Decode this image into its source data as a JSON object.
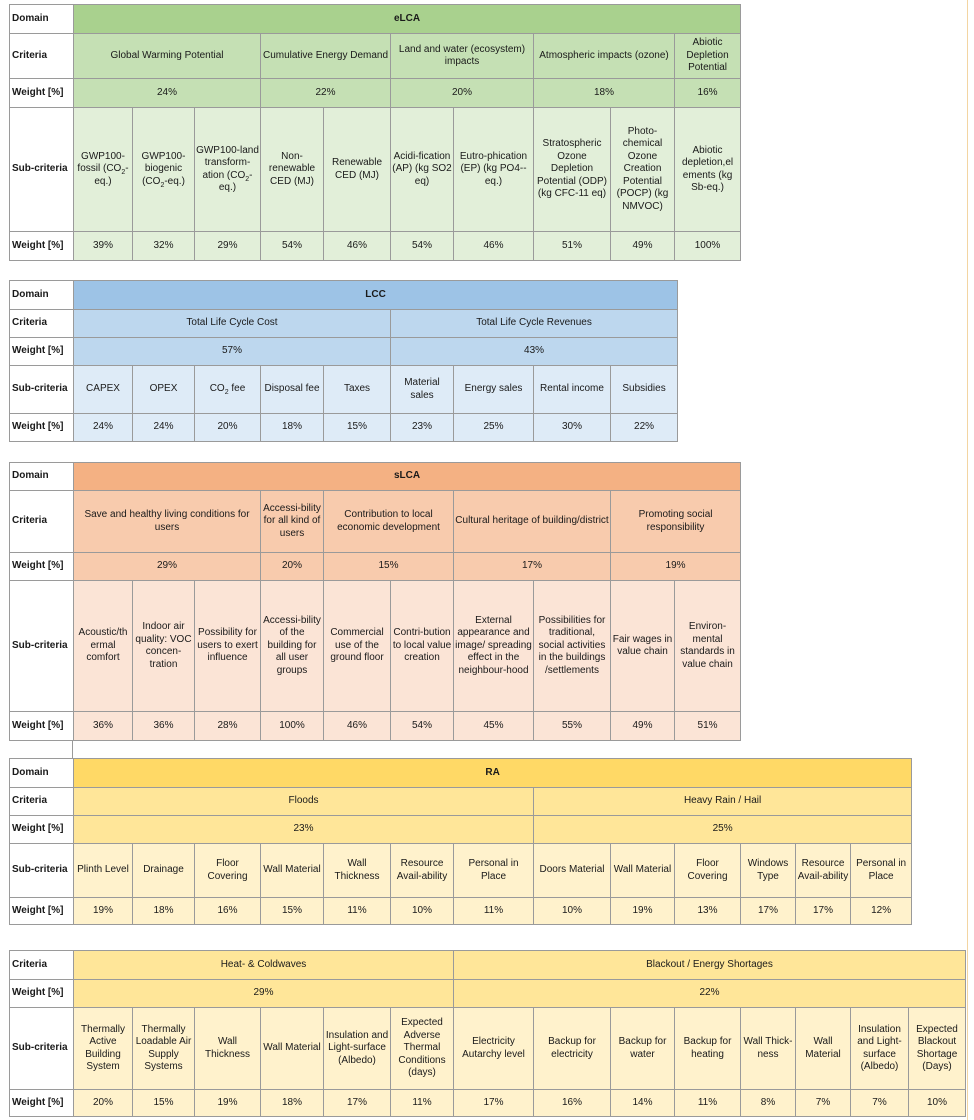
{
  "labels": {
    "domain": "Domain",
    "criteria": "Criteria",
    "weight": "Weight [%]",
    "subcriteria": "Sub-criteria"
  },
  "elca": {
    "domain": "eLCA",
    "criteria": [
      "Global Warming Potential",
      "Cumulative Energy Demand",
      "Land and water (ecosystem) impacts",
      "Atmospheric impacts (ozone)",
      "Abiotic Depletion Potential"
    ],
    "criteria_weights": [
      "24%",
      "22%",
      "20%",
      "18%",
      "16%"
    ],
    "subcriteria": [
      {
        "a": "GWP100-fossil (CO",
        "sub": "2",
        "b": "-eq.)"
      },
      {
        "a": "GWP100-biogenic (CO",
        "sub": "2",
        "b": "-eq.)"
      },
      {
        "a": "GWP100-land transform-ation (CO",
        "sub": "2",
        "b": "-eq.)"
      },
      {
        "a": "Non-renewable CED (MJ)"
      },
      {
        "a": "Renewable CED (MJ)"
      },
      {
        "a": "Acidi-fication (AP) (kg SO2 eq)"
      },
      {
        "a": "Eutro-phication (EP) (kg PO4-- eq.)"
      },
      {
        "a": "Stratospheric Ozone Depletion Potential (ODP) (kg CFC-11 eq)"
      },
      {
        "a": "Photo-chemical Ozone Creation Potential (POCP) (kg NMVOC)"
      },
      {
        "a": "Abiotic depletion,el ements (kg Sb-eq.)"
      }
    ],
    "sub_weights": [
      "39%",
      "32%",
      "29%",
      "54%",
      "46%",
      "54%",
      "46%",
      "51%",
      "49%",
      "100%"
    ]
  },
  "lcc": {
    "domain": "LCC",
    "criteria": [
      "Total Life Cycle Cost",
      "Total Life Cycle Revenues"
    ],
    "criteria_weights": [
      "57%",
      "43%"
    ],
    "subcriteria": [
      {
        "a": "CAPEX"
      },
      {
        "a": "OPEX"
      },
      {
        "a": "CO",
        "sub": "2",
        "b": " fee"
      },
      {
        "a": "Disposal fee"
      },
      {
        "a": "Taxes"
      },
      {
        "a": "Material sales"
      },
      {
        "a": "Energy sales"
      },
      {
        "a": "Rental income"
      },
      {
        "a": "Subsidies"
      }
    ],
    "sub_weights": [
      "24%",
      "24%",
      "20%",
      "18%",
      "15%",
      "23%",
      "25%",
      "30%",
      "22%"
    ]
  },
  "slca": {
    "domain": "sLCA",
    "criteria": [
      "Save and healthy living conditions for users",
      "Accessi-bility for all kind of users",
      "Contribution to local economic development",
      "Cultural heritage of building/district",
      "Promoting social responsibility"
    ],
    "criteria_weights": [
      "29%",
      "20%",
      "15%",
      "17%",
      "19%"
    ],
    "subcriteria": [
      {
        "a": "Acoustic/th ermal comfort"
      },
      {
        "a": "Indoor air quality: VOC concen-tration"
      },
      {
        "a": "Possibility for users to exert influence"
      },
      {
        "a": "Accessi-bility of the building for all user groups"
      },
      {
        "a": "Commercial use of the ground floor"
      },
      {
        "a": "Contri-bution to local value creation"
      },
      {
        "a": "External appearance and image/ spreading effect in the neighbour-hood"
      },
      {
        "a": "Possibilities for traditional, social activities in the buildings /settlements"
      },
      {
        "a": "Fair wages in value chain"
      },
      {
        "a": "Environ-mental standards in value chain"
      }
    ],
    "sub_weights": [
      "36%",
      "36%",
      "28%",
      "100%",
      "46%",
      "54%",
      "45%",
      "55%",
      "49%",
      "51%"
    ]
  },
  "ra1": {
    "domain": "RA",
    "criteria": [
      "Floods",
      "Heavy Rain / Hail"
    ],
    "criteria_weights": [
      "23%",
      "25%"
    ],
    "subcriteria": [
      {
        "a": "Plinth Level"
      },
      {
        "a": "Drainage"
      },
      {
        "a": "Floor Covering"
      },
      {
        "a": "Wall Material"
      },
      {
        "a": "Wall Thickness"
      },
      {
        "a": "Resource Avail-ability"
      },
      {
        "a": "Personal in Place"
      },
      {
        "a": "Doors Material"
      },
      {
        "a": "Wall Material"
      },
      {
        "a": "Floor Covering"
      },
      {
        "a": "Windows Type"
      },
      {
        "a": "Resource Avail-ability"
      },
      {
        "a": "Personal in Place"
      }
    ],
    "sub_weights": [
      "19%",
      "18%",
      "16%",
      "15%",
      "11%",
      "10%",
      "11%",
      "10%",
      "19%",
      "13%",
      "17%",
      "17%",
      "12%"
    ]
  },
  "ra2": {
    "criteria": [
      "Heat- & Coldwaves",
      "Blackout / Energy Shortages"
    ],
    "criteria_weights": [
      "29%",
      "22%"
    ],
    "subcriteria": [
      {
        "a": "Thermally Active Building System"
      },
      {
        "a": "Thermally Loadable Air Supply Systems"
      },
      {
        "a": "Wall Thickness"
      },
      {
        "a": "Wall Material"
      },
      {
        "a": "Insulation and Light-surface (Albedo)"
      },
      {
        "a": "Expected Adverse Thermal Conditions (days)"
      },
      {
        "a": "Electricity Autarchy level"
      },
      {
        "a": "Backup for electricity"
      },
      {
        "a": "Backup for water"
      },
      {
        "a": "Backup for heating"
      },
      {
        "a": "Wall Thick-ness"
      },
      {
        "a": "Wall Material"
      },
      {
        "a": "Insulation and Light-surface (Albedo)"
      },
      {
        "a": "Expected Blackout Shortage (Days)"
      }
    ],
    "sub_weights": [
      "20%",
      "15%",
      "19%",
      "18%",
      "17%",
      "11%",
      "17%",
      "16%",
      "14%",
      "11%",
      "8%",
      "7%",
      "7%",
      "10%"
    ]
  },
  "colors": {
    "elca": [
      "#a9d18e",
      "#c5e0b4",
      "#e2efd9"
    ],
    "lcc": [
      "#9dc3e6",
      "#bdd7ee",
      "#deebf7"
    ],
    "slca": [
      "#f4b183",
      "#f8cbad",
      "#fbe4d6"
    ],
    "ra": [
      "#ffd966",
      "#ffe699",
      "#fff2cc"
    ]
  }
}
